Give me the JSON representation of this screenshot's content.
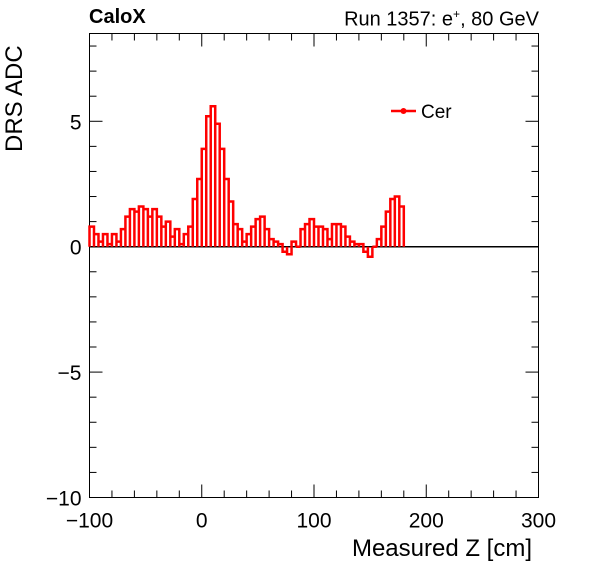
{
  "header": {
    "experiment": "CaloX",
    "run_prefix": "Run 1357: e",
    "run_sup": "+",
    "run_suffix": ", 80 GeV"
  },
  "chart_data": {
    "type": "line",
    "title": "",
    "xlabel": "Measured Z [cm]",
    "ylabel": "DRS ADC",
    "xlim": [
      -100,
      300
    ],
    "ylim": [
      -10,
      8.5
    ],
    "x_ticks": [
      "−100",
      "0",
      "100",
      "200",
      "300"
    ],
    "x_tick_values": [
      -100,
      0,
      100,
      200,
      300
    ],
    "y_ticks": [
      "−10",
      "−5",
      "0",
      "5"
    ],
    "y_tick_values": [
      -10,
      -5,
      0,
      5
    ],
    "grid": false,
    "legend_position": "top-right",
    "series": [
      {
        "name": "Cer",
        "color": "#ff0000",
        "style": "histogram",
        "bin_width": 4,
        "x_start": -100,
        "values": [
          0.8,
          0.5,
          0.2,
          0.5,
          0.1,
          0.5,
          0.2,
          0.7,
          1.2,
          1.5,
          1.4,
          1.6,
          1.5,
          1.2,
          1.5,
          1.2,
          0.8,
          1.0,
          0.4,
          0.7,
          0.1,
          0.5,
          0.8,
          1.9,
          2.7,
          3.9,
          5.2,
          5.6,
          4.9,
          3.9,
          2.7,
          1.8,
          0.9,
          0.7,
          0.2,
          0.5,
          0.8,
          1.1,
          1.2,
          0.7,
          0.3,
          0.2,
          0.1,
          -0.2,
          -0.3,
          0.2,
          0.0,
          0.7,
          0.9,
          1.1,
          0.8,
          0.8,
          0.7,
          0.3,
          0.9,
          0.9,
          0.8,
          0.4,
          0.2,
          0.1,
          0.1,
          -0.2,
          -0.4,
          0.0,
          0.3,
          0.8,
          1.4,
          1.9,
          2.0,
          1.6
        ]
      }
    ]
  }
}
